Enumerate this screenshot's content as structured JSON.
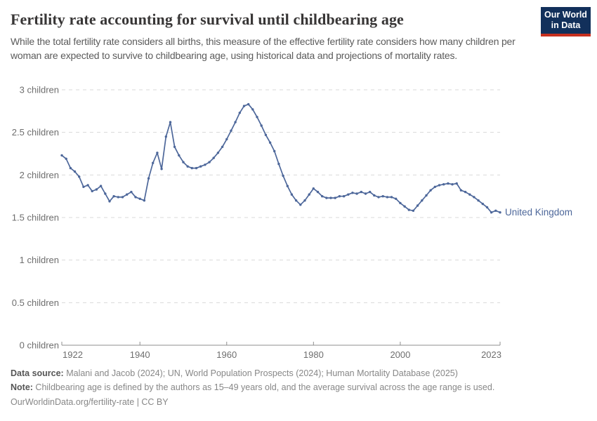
{
  "header": {
    "title": "Fertility rate accounting for survival until childbearing age",
    "subtitle": "While the total fertility rate considers all births, this measure of the effective fertility rate considers how many children per woman are expected to survive to childbearing age, using historical data and projections of mortality rates.",
    "logo_line1": "Our World",
    "logo_line2": "in Data"
  },
  "chart_data": {
    "type": "line",
    "title": "Fertility rate accounting for survival until childbearing age",
    "xlabel": "",
    "ylabel": "",
    "xlim": [
      1922,
      2023
    ],
    "ylim": [
      0,
      3
    ],
    "grid": "horizontal-dashed",
    "legend_position": "end-of-line-label",
    "x_ticks": [
      1922,
      1940,
      1960,
      1980,
      2000,
      2023
    ],
    "x_tick_labels": [
      "1922",
      "1940",
      "1960",
      "1980",
      "2000",
      "2023"
    ],
    "y_ticks": [
      0,
      0.5,
      1,
      1.5,
      2,
      2.5,
      3
    ],
    "y_tick_labels": [
      "0 children",
      "0.5 children",
      "1 children",
      "1.5 children",
      "2 children",
      "2.5 children",
      "3 children"
    ],
    "series": [
      {
        "name": "United Kingdom",
        "color": "#4d679a",
        "years": [
          1922,
          1923,
          1924,
          1925,
          1926,
          1927,
          1928,
          1929,
          1930,
          1931,
          1932,
          1933,
          1934,
          1935,
          1936,
          1937,
          1938,
          1939,
          1940,
          1941,
          1942,
          1943,
          1944,
          1945,
          1946,
          1947,
          1948,
          1949,
          1950,
          1951,
          1952,
          1953,
          1954,
          1955,
          1956,
          1957,
          1958,
          1959,
          1960,
          1961,
          1962,
          1963,
          1964,
          1965,
          1966,
          1967,
          1968,
          1969,
          1970,
          1971,
          1972,
          1973,
          1974,
          1975,
          1976,
          1977,
          1978,
          1979,
          1980,
          1981,
          1982,
          1983,
          1984,
          1985,
          1986,
          1987,
          1988,
          1989,
          1990,
          1991,
          1992,
          1993,
          1994,
          1995,
          1996,
          1997,
          1998,
          1999,
          2000,
          2001,
          2002,
          2003,
          2004,
          2005,
          2006,
          2007,
          2008,
          2009,
          2010,
          2011,
          2012,
          2013,
          2014,
          2015,
          2016,
          2017,
          2018,
          2019,
          2020,
          2021,
          2022,
          2023
        ],
        "values": [
          2.23,
          2.19,
          2.08,
          2.04,
          1.98,
          1.86,
          1.88,
          1.81,
          1.83,
          1.87,
          1.78,
          1.69,
          1.75,
          1.74,
          1.74,
          1.77,
          1.8,
          1.74,
          1.72,
          1.7,
          1.96,
          2.14,
          2.26,
          2.07,
          2.45,
          2.62,
          2.33,
          2.23,
          2.15,
          2.1,
          2.08,
          2.08,
          2.1,
          2.12,
          2.15,
          2.2,
          2.26,
          2.33,
          2.42,
          2.52,
          2.62,
          2.73,
          2.81,
          2.83,
          2.77,
          2.68,
          2.58,
          2.47,
          2.38,
          2.28,
          2.13,
          1.99,
          1.87,
          1.77,
          1.7,
          1.65,
          1.7,
          1.77,
          1.84,
          1.8,
          1.75,
          1.73,
          1.73,
          1.73,
          1.75,
          1.75,
          1.77,
          1.79,
          1.78,
          1.8,
          1.78,
          1.8,
          1.76,
          1.74,
          1.75,
          1.74,
          1.74,
          1.72,
          1.67,
          1.63,
          1.59,
          1.58,
          1.64,
          1.7,
          1.76,
          1.82,
          1.86,
          1.88,
          1.89,
          1.9,
          1.89,
          1.9,
          1.82,
          1.8,
          1.77,
          1.74,
          1.7,
          1.66,
          1.62,
          1.56,
          1.58,
          1.56
        ]
      }
    ],
    "colors": {
      "line": "#4d679a",
      "gridline": "#dadada",
      "axis": "#8f8f8f",
      "tick_text": "#6e6e6e"
    }
  },
  "footer": {
    "data_source_label": "Data source:",
    "data_source": " Malani and Jacob (2024); UN, World Population Prospects (2024); Human Mortality Database (2025)",
    "note_label": "Note:",
    "note": " Childbearing age is defined by the authors as 15–49 years old, and the average survival across the age range is used.",
    "url_line": "OurWorldinData.org/fertility-rate | CC BY"
  }
}
